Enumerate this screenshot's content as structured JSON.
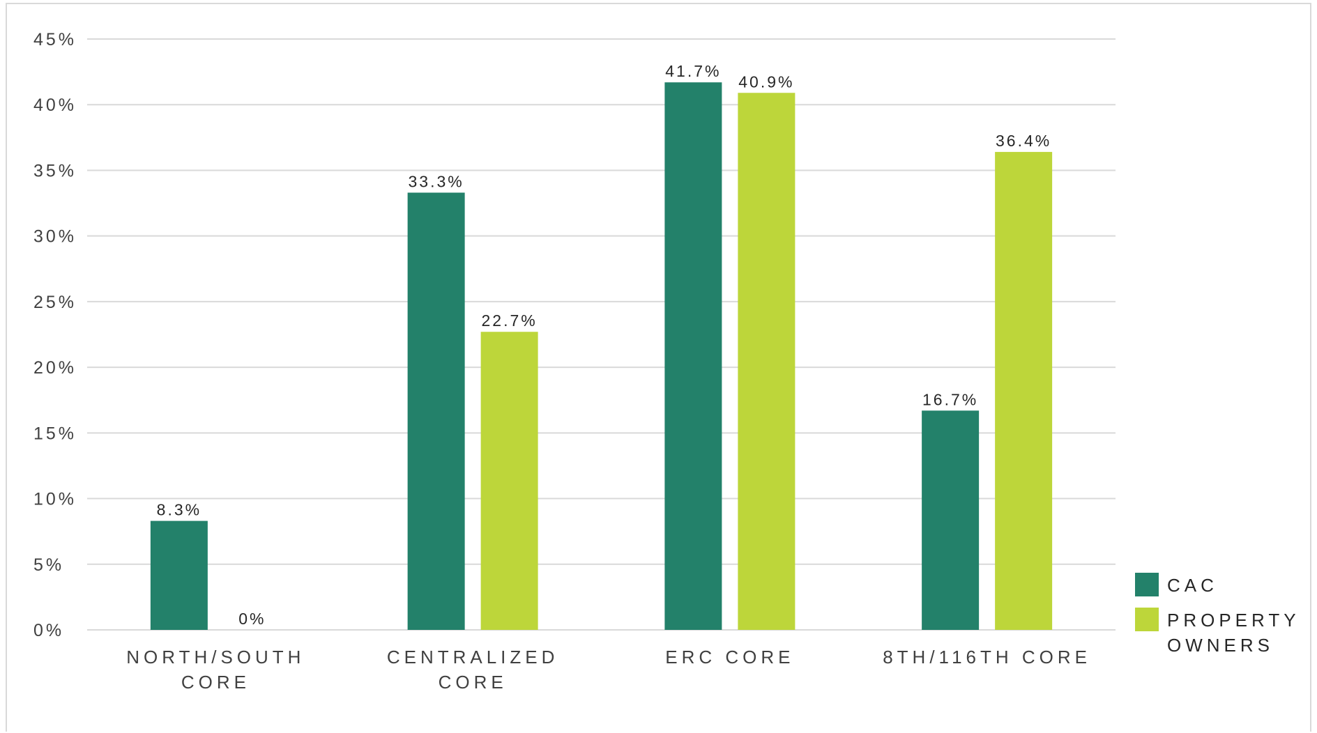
{
  "chart_data": {
    "type": "bar",
    "categories": [
      [
        "NORTH/SOUTH",
        "CORE"
      ],
      [
        "CENTRALIZED",
        "CORE"
      ],
      [
        "ERC CORE"
      ],
      [
        "8TH/116TH CORE"
      ]
    ],
    "series": [
      {
        "name": "CAC",
        "color": "#23816a",
        "values": [
          8.3,
          33.3,
          41.7,
          16.7
        ],
        "labels": [
          "8.3%",
          "33.3%",
          "41.7%",
          "16.7%"
        ]
      },
      {
        "name_lines": [
          "PROPERTY",
          "OWNERS"
        ],
        "color": "#bdd63a",
        "values": [
          0,
          22.7,
          40.9,
          36.4
        ],
        "labels": [
          "0%",
          "22.7%",
          "40.9%",
          "36.4%"
        ]
      }
    ],
    "ylim": [
      0,
      45
    ],
    "yticks": [
      0,
      5,
      10,
      15,
      20,
      25,
      30,
      35,
      40,
      45
    ],
    "ytick_labels": [
      "0%",
      "5%",
      "10%",
      "15%",
      "20%",
      "25%",
      "30%",
      "35%",
      "40%",
      "45%"
    ],
    "grid": true,
    "legend_position": "bottom-right",
    "title": "",
    "xlabel": "",
    "ylabel": ""
  }
}
